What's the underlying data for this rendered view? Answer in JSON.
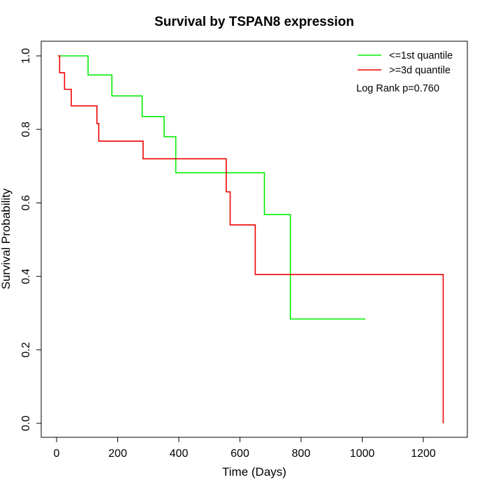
{
  "chart_data": {
    "type": "line",
    "title": "Survival by TSPAN8 expression",
    "xlabel": "Time (Days)",
    "ylabel": "Survival Probability",
    "xlim": [
      0,
      1300
    ],
    "ylim": [
      0,
      1
    ],
    "x_ticks": [
      0,
      200,
      400,
      600,
      800,
      1000,
      1200
    ],
    "x_tick_labels": [
      "0",
      "200",
      "400",
      "600",
      "800",
      "1000",
      "1200"
    ],
    "y_ticks": [
      0,
      0.2,
      0.4,
      0.6,
      0.8,
      1.0
    ],
    "y_tick_labels": [
      "0.0",
      "0.2",
      "0.4",
      "0.6",
      "0.8",
      "1.0"
    ],
    "grid": false,
    "legend_position": "top-right",
    "annotation": "Log Rank p=0.760",
    "series": [
      {
        "name": "<=1st quantile",
        "color": "#00ee00",
        "steps": [
          [
            5,
            1.0
          ],
          [
            103,
            0.948
          ],
          [
            181,
            0.891
          ],
          [
            280,
            0.835
          ],
          [
            352,
            0.78
          ],
          [
            390,
            0.682
          ],
          [
            680,
            0.568
          ],
          [
            765,
            0.284
          ],
          [
            1010,
            0.284
          ]
        ]
      },
      {
        "name": ">=3d quantile",
        "color": "#ee0000",
        "steps": [
          [
            5,
            1.0
          ],
          [
            10,
            0.954
          ],
          [
            26,
            0.909
          ],
          [
            48,
            0.864
          ],
          [
            132,
            0.816
          ],
          [
            138,
            0.768
          ],
          [
            283,
            0.72
          ],
          [
            555,
            0.63
          ],
          [
            568,
            0.54
          ],
          [
            650,
            0.405
          ],
          [
            1265,
            0.0
          ]
        ]
      }
    ]
  }
}
